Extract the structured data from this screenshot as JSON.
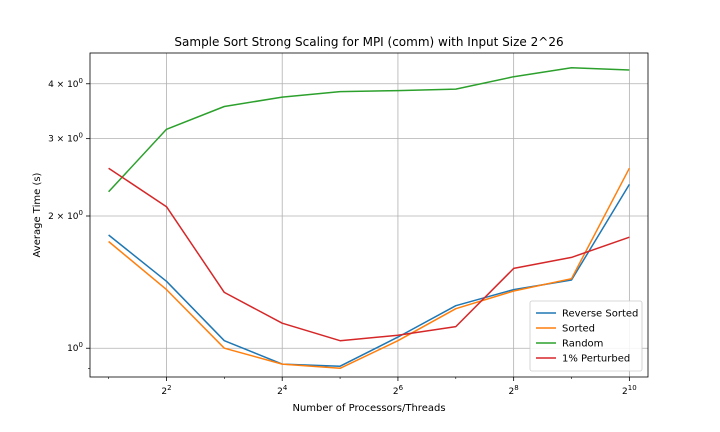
{
  "chart_data": {
    "type": "line",
    "title": "Sample Sort Strong Scaling for MPI (comm) with Input Size 2^26",
    "xlabel": "Number of Processors/Threads",
    "ylabel": "Average Time (s)",
    "x_scale": "log2",
    "y_scale": "log",
    "x": [
      2,
      4,
      8,
      16,
      32,
      64,
      128,
      256,
      512,
      1024
    ],
    "xlim": [
      1.6,
      1280
    ],
    "ylim": [
      0.86,
      4.7
    ],
    "x_ticks": [
      {
        "value": 4,
        "base": "2",
        "exp": "2"
      },
      {
        "value": 16,
        "base": "2",
        "exp": "4"
      },
      {
        "value": 64,
        "base": "2",
        "exp": "6"
      },
      {
        "value": 256,
        "base": "2",
        "exp": "8"
      },
      {
        "value": 1024,
        "base": "2",
        "exp": "10"
      }
    ],
    "y_ticks": [
      {
        "value": 1,
        "mant": "10",
        "exp": "0"
      },
      {
        "value": 2,
        "mant": "2 × 10",
        "exp": "0"
      },
      {
        "value": 3,
        "mant": "3 × 10",
        "exp": "0"
      },
      {
        "value": 4,
        "mant": "4 × 10",
        "exp": "0"
      }
    ],
    "grid": true,
    "legend_position": "lower-right",
    "series": [
      {
        "name": "Reverse Sorted",
        "color": "#1f77b4",
        "values": [
          1.81,
          1.42,
          1.04,
          0.92,
          0.91,
          1.06,
          1.25,
          1.36,
          1.43,
          2.36
        ]
      },
      {
        "name": "Sorted",
        "color": "#ff7f0e",
        "values": [
          1.75,
          1.36,
          1.0,
          0.92,
          0.9,
          1.04,
          1.23,
          1.35,
          1.44,
          2.57
        ]
      },
      {
        "name": "Random",
        "color": "#2ca02c",
        "values": [
          2.27,
          3.15,
          3.55,
          3.73,
          3.84,
          3.86,
          3.89,
          4.15,
          4.35,
          4.3
        ]
      },
      {
        "name": "1% Perturbed",
        "color": "#d62728",
        "values": [
          2.57,
          2.1,
          1.34,
          1.14,
          1.04,
          1.07,
          1.12,
          1.52,
          1.61,
          1.79
        ]
      }
    ]
  }
}
